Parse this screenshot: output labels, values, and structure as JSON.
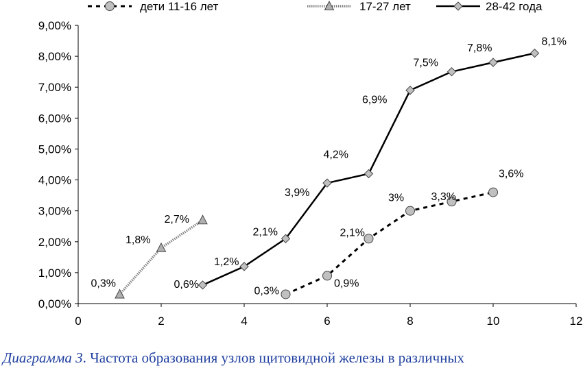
{
  "chart_data": {
    "type": "line",
    "x_range": [
      0,
      12
    ],
    "y_range": [
      0,
      0.09
    ],
    "x_ticks": [
      "0",
      "2",
      "4",
      "6",
      "8",
      "10",
      "12"
    ],
    "y_ticks": [
      "0,00%",
      "1,00%",
      "2,00%",
      "3,00%",
      "4,00%",
      "5,00%",
      "6,00%",
      "7,00%",
      "8,00%",
      "9,00%"
    ],
    "grid": false,
    "legend_position": "top",
    "series": [
      {
        "name": "дети 11-16 лет",
        "style": "dashed",
        "marker": "circle",
        "color": "#000000",
        "marker_fill": "#c0c0c0",
        "x": [
          5,
          6,
          7,
          8,
          9,
          10
        ],
        "y": [
          0.003,
          0.009,
          0.021,
          0.03,
          0.033,
          0.036
        ],
        "labels": [
          "0,3%",
          "0,9%",
          "2,1%",
          "3%",
          "3,3%",
          "3,6%"
        ]
      },
      {
        "name": "17-27 лет",
        "style": "dotted",
        "marker": "triangle",
        "color": "#808080",
        "marker_fill": "#b0b0b0",
        "x": [
          1,
          2,
          3
        ],
        "y": [
          0.003,
          0.018,
          0.027
        ],
        "labels": [
          "0,3%",
          "1,8%",
          "2,7%"
        ]
      },
      {
        "name": "28-42 года",
        "style": "solid",
        "marker": "diamond",
        "color": "#000000",
        "marker_fill": "#c0c0c0",
        "x": [
          3,
          4,
          5,
          6,
          7,
          8,
          9,
          10,
          11
        ],
        "y": [
          0.006,
          0.012,
          0.021,
          0.039,
          0.042,
          0.069,
          0.075,
          0.078,
          0.081
        ],
        "labels": [
          "0,6%",
          "1,2%",
          "2,1%",
          "3,9%",
          "4,2%",
          "6,9%",
          "7,5%",
          "7,8%",
          "8,1%"
        ]
      }
    ]
  },
  "caption": {
    "number": "Диаграмма 3",
    "text": ". Частота образования узлов щитовидной железы в различных"
  }
}
